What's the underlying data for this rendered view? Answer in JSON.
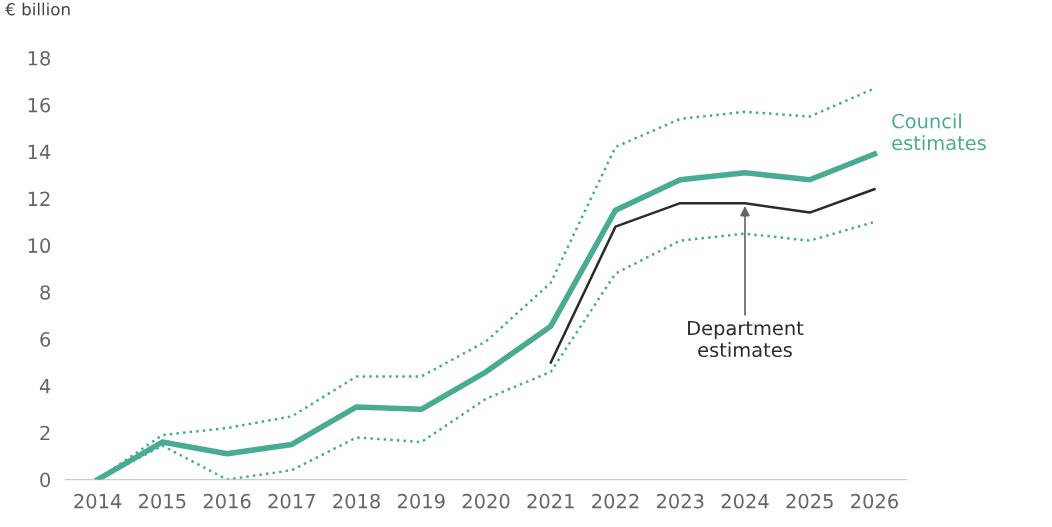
{
  "chart_data": {
    "type": "line",
    "ylabel": "€ billion",
    "x": [
      2014,
      2015,
      2016,
      2017,
      2018,
      2019,
      2020,
      2021,
      2022,
      2023,
      2024,
      2025,
      2026
    ],
    "series": [
      {
        "name": "Council estimates",
        "color": "#4aab93",
        "values": [
          0,
          1.6,
          1.1,
          1.5,
          3.1,
          3.0,
          4.6,
          6.55,
          11.5,
          12.8,
          13.1,
          12.8,
          13.9
        ]
      },
      {
        "color": "#4aab93",
        "line_style": "dotted",
        "values": [
          0,
          1.45,
          0,
          0.4,
          1.8,
          1.6,
          3.45,
          4.6,
          8.8,
          10.2,
          10.5,
          10.2,
          11.0
        ]
      },
      {
        "color": "#4aab93",
        "line_style": "dotted",
        "values": [
          0,
          1.9,
          2.2,
          2.7,
          4.4,
          4.4,
          5.9,
          8.4,
          14.2,
          15.4,
          15.7,
          15.5,
          16.7
        ]
      },
      {
        "name": "Department estimates",
        "color": "#2b2b2b",
        "x": [
          2021,
          2022,
          2023,
          2024,
          2025,
          2026
        ],
        "values": [
          5.0,
          10.8,
          11.8,
          11.8,
          11.4,
          12.4
        ]
      }
    ],
    "xlim": [
      2013.5,
      2026.5
    ],
    "ylim": [
      0,
      18
    ],
    "xticks": [
      2014,
      2015,
      2016,
      2017,
      2018,
      2019,
      2020,
      2021,
      2022,
      2023,
      2024,
      2025,
      2026
    ],
    "yticks": [
      0,
      2,
      4,
      6,
      8,
      10,
      12,
      14,
      16,
      18
    ],
    "grid": false,
    "legend": false,
    "marker": "none",
    "line_style": "solid"
  }
}
